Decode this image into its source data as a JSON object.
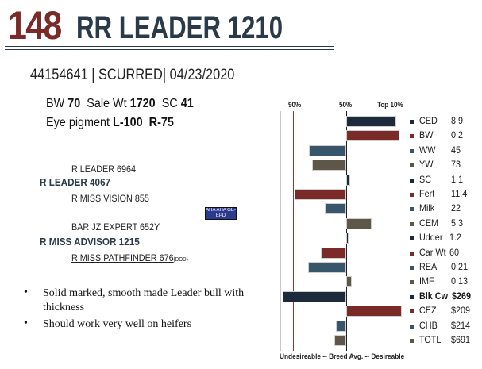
{
  "header": {
    "lot_number": "148",
    "bull_name": "RR LEADER 1210",
    "id_line": "44154641 | SCURRED| 04/23/2020"
  },
  "stats": {
    "bw_label": "BW",
    "bw_value": "70",
    "sale_wt_label": "Sale Wt",
    "sale_wt_value": "1720",
    "sc_label": "SC",
    "sc_value": "41",
    "eye_label": "Eye pigment",
    "eye_left": "L-100",
    "eye_right": "R-75"
  },
  "pedigree": {
    "sire_sire": "R LEADER 6964",
    "sire": "R LEADER 4067",
    "sire_dam": "R MISS VISION 855",
    "dam_sire": "BAR JZ EXPERT 652Y",
    "dam": "R MISS ADVISOR 1215",
    "dam_dam": "R MISS PATHFINDER 676",
    "dam_dam_tag": "{DOD}",
    "logo_text": "AHA AHA GE-EPD"
  },
  "comments": [
    "Solid marked, smooth made Leader bull with thickness",
    "Should work very well on heifers"
  ],
  "chart_data": {
    "type": "bar",
    "scale_labels": [
      "90%",
      "50%",
      "Top 10%"
    ],
    "footer": "Undesireable -- Breed Avg. -- Desireable",
    "colors": {
      "navy": "#1c2a3c",
      "red": "#7a2b28",
      "steel": "#37566c",
      "olive": "#5e5749",
      "guide_red": "#8b3a32"
    },
    "traits": [
      {
        "name": "CED",
        "value": "8.9",
        "percentile": 12,
        "color": "#1c2a3c",
        "bold": false
      },
      {
        "name": "BW",
        "value": "0.2",
        "percentile": 10,
        "color": "#7a2b28",
        "bold": false
      },
      {
        "name": "WW",
        "value": "45",
        "percentile": 78,
        "color": "#37566c",
        "bold": false
      },
      {
        "name": "YW",
        "value": "73",
        "percentile": 76,
        "color": "#5e5749",
        "bold": false
      },
      {
        "name": "SC",
        "value": "1.1",
        "percentile": 47,
        "color": "#1c2a3c",
        "bold": false
      },
      {
        "name": "Fert",
        "value": "11.4",
        "percentile": 89,
        "color": "#7a2b28",
        "bold": false
      },
      {
        "name": "Milk",
        "value": "22",
        "percentile": 66,
        "color": "#37566c",
        "bold": false
      },
      {
        "name": "CEM",
        "value": "5.3",
        "percentile": 31,
        "color": "#5e5749",
        "bold": false
      },
      {
        "name": "Udder",
        "value": "1.2",
        "percentile": 48,
        "color": "#1c2a3c",
        "bold": false
      },
      {
        "name": "Car Wt",
        "value": "60",
        "percentile": 69,
        "color": "#7a2b28",
        "bold": false
      },
      {
        "name": "REA",
        "value": "0.21",
        "percentile": 79,
        "color": "#37566c",
        "bold": false
      },
      {
        "name": "IMF",
        "value": "0.13",
        "percentile": 46,
        "color": "#5e5749",
        "bold": false
      },
      {
        "name": "Blk Cw",
        "value": "$269",
        "percentile": 98,
        "color": "#1c2a3c",
        "bold": true
      },
      {
        "name": "CEZ",
        "value": "$209",
        "percentile": 8,
        "color": "#7a2b28",
        "bold": false
      },
      {
        "name": "CHB",
        "value": "$214",
        "percentile": 58,
        "color": "#37566c",
        "bold": false
      },
      {
        "name": "TOTL",
        "value": "$691",
        "percentile": 59,
        "color": "#5e5749",
        "bold": false
      }
    ]
  }
}
